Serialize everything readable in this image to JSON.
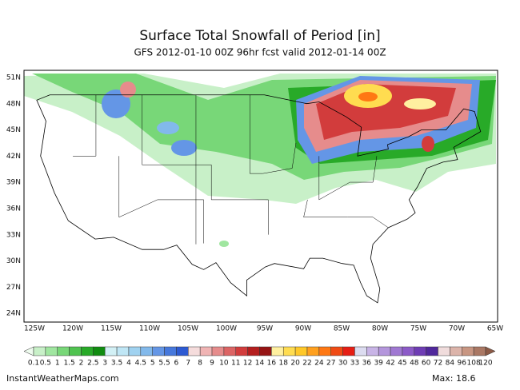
{
  "header": {
    "title": "Surface Total Snowfall of Period [in]",
    "subtitle": "GFS 2012-01-10 00Z 96hr fcst valid 2012-01-14 00Z"
  },
  "axes": {
    "lat_labels": [
      "51N",
      "48N",
      "45N",
      "42N",
      "39N",
      "36N",
      "33N",
      "30N",
      "27N",
      "24N"
    ],
    "lon_labels": [
      "125W",
      "120W",
      "115W",
      "110W",
      "105W",
      "100W",
      "95W",
      "90W",
      "85W",
      "80W",
      "75W",
      "70W",
      "65W"
    ]
  },
  "legend": {
    "labels": [
      "0.1",
      "0.5",
      "1",
      "1.5",
      "2",
      "2.5",
      "3",
      "3.5",
      "4",
      "4.5",
      "5",
      "5.5",
      "6",
      "7",
      "8",
      "9",
      "10",
      "11",
      "12",
      "14",
      "16",
      "18",
      "20",
      "22",
      "24",
      "27",
      "30",
      "33",
      "36",
      "39",
      "42",
      "45",
      "48",
      "60",
      "72",
      "84",
      "96",
      "108",
      "120"
    ],
    "colors": [
      "#eefbee",
      "#c8f0c8",
      "#a0e6a0",
      "#78d778",
      "#50c350",
      "#28aa28",
      "#108c10",
      "#d2f0f5",
      "#bfe6f5",
      "#a0d2f0",
      "#82b9eb",
      "#6496e6",
      "#4678dc",
      "#2d5ad2",
      "#f5dcdc",
      "#f0b4b4",
      "#e68c8c",
      "#dc6464",
      "#d23c3c",
      "#b41e1e",
      "#961414",
      "#fff0a0",
      "#ffdc50",
      "#ffc828",
      "#ffa01e",
      "#ff7814",
      "#f04b14",
      "#e61e14",
      "#dcdcf0",
      "#c8b4e6",
      "#b496dc",
      "#a078d2",
      "#8c5ac8",
      "#6e3cb4",
      "#50289b",
      "#f0dcdc",
      "#dcb4aa",
      "#c89682",
      "#aa7864",
      "#8c5a46"
    ]
  },
  "footer": {
    "source": "InstantWeatherMaps.com",
    "max": "Max:  18.6"
  }
}
